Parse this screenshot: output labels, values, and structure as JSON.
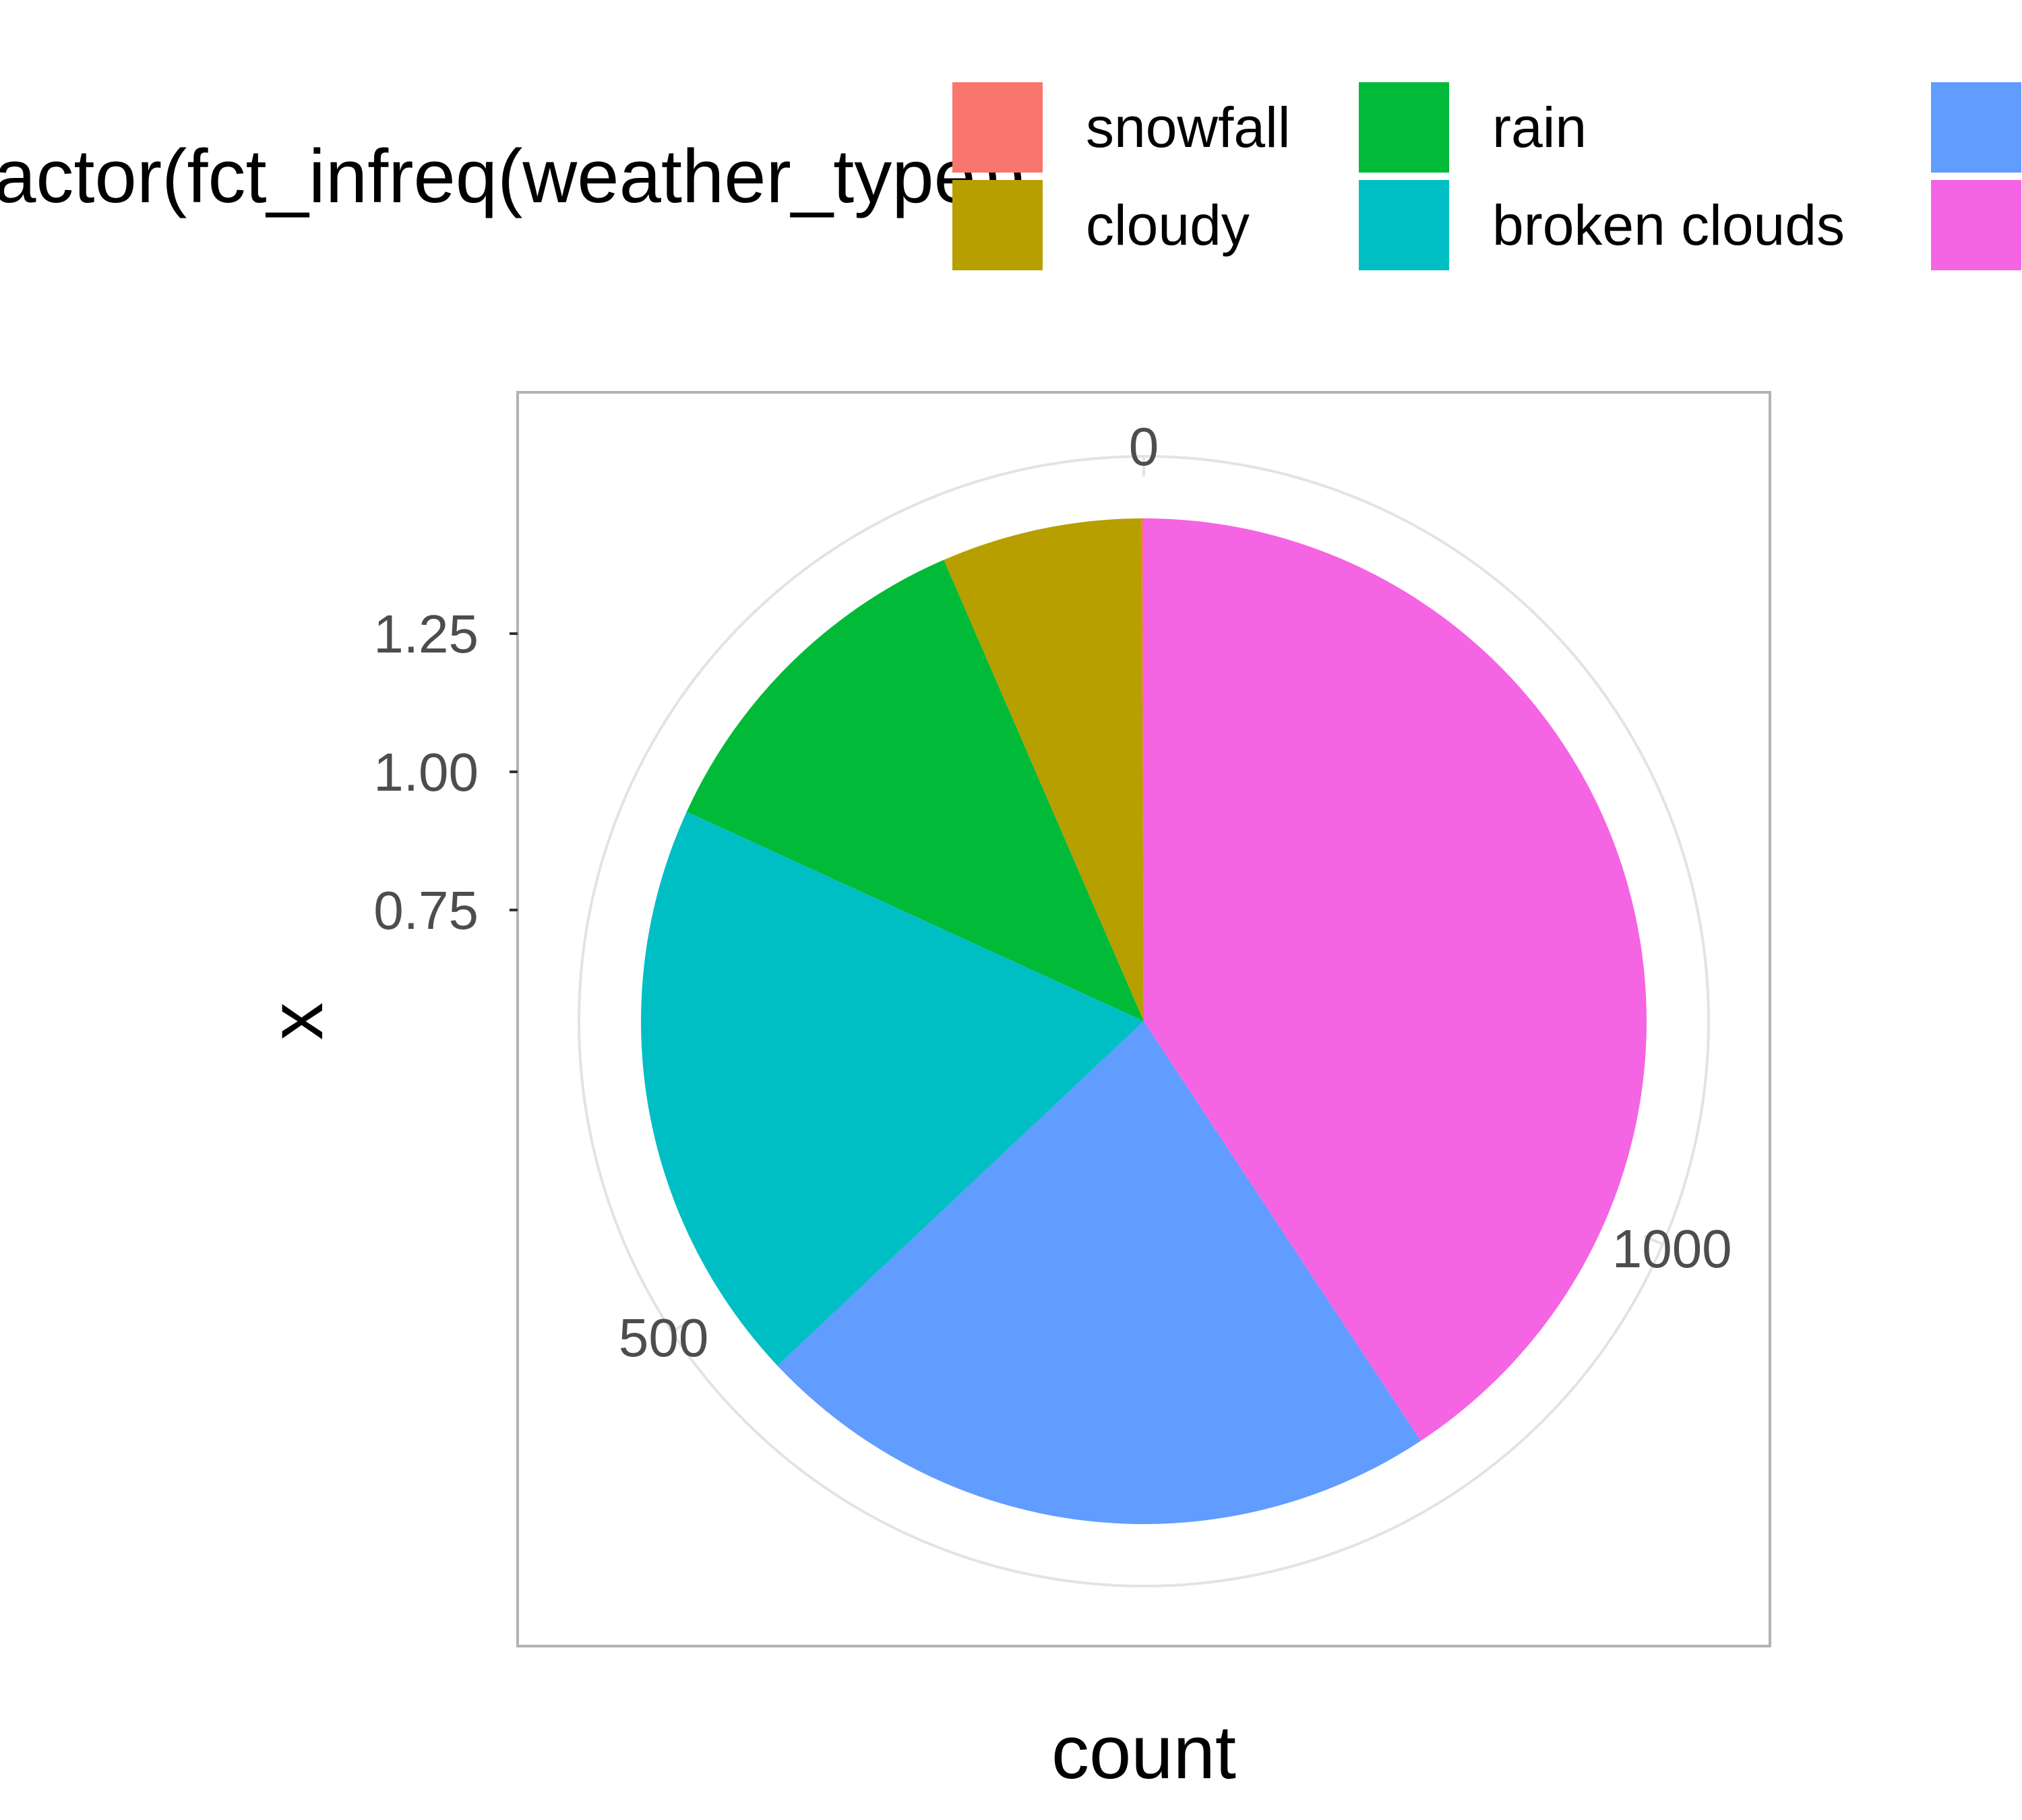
{
  "chart_data": {
    "type": "pie",
    "coord": "polar (theta = y, counterclockwise, start at top)",
    "legend": {
      "title": "factor(fct_infreq(weather_type))",
      "position": "top",
      "entries": [
        {
          "label": "snowfall",
          "color": "#F8766D"
        },
        {
          "label": "rain",
          "color": "#00BA38"
        },
        {
          "label": "",
          "color": "#619CFF"
        },
        {
          "label": "cloudy",
          "color": "#B79F00"
        },
        {
          "label": "broken clouds",
          "color": "#00BFC4"
        },
        {
          "label": "",
          "color": "#F564E3"
        }
      ]
    },
    "slices_in_stack_order": [
      {
        "label": "snowfall",
        "value": 1,
        "color": "#F8766D"
      },
      {
        "label": "cloudy",
        "value": 94,
        "color": "#B79F00"
      },
      {
        "label": "rain",
        "value": 170,
        "color": "#00BA38"
      },
      {
        "label": "broken clouds",
        "value": 275,
        "color": "#00BFC4"
      },
      {
        "label": "",
        "value": 325,
        "color": "#619CFF"
      },
      {
        "label": "",
        "value": 594,
        "color": "#F564E3"
      }
    ],
    "theta_axis": {
      "title": "count",
      "ticks": [
        0,
        500,
        1000
      ],
      "range": [
        0,
        1459
      ]
    },
    "radial_axis": {
      "title": "x",
      "ticks": [
        "0.75",
        "1.00",
        "1.25"
      ],
      "range": [
        0.5,
        1.5
      ]
    },
    "grid": true
  }
}
